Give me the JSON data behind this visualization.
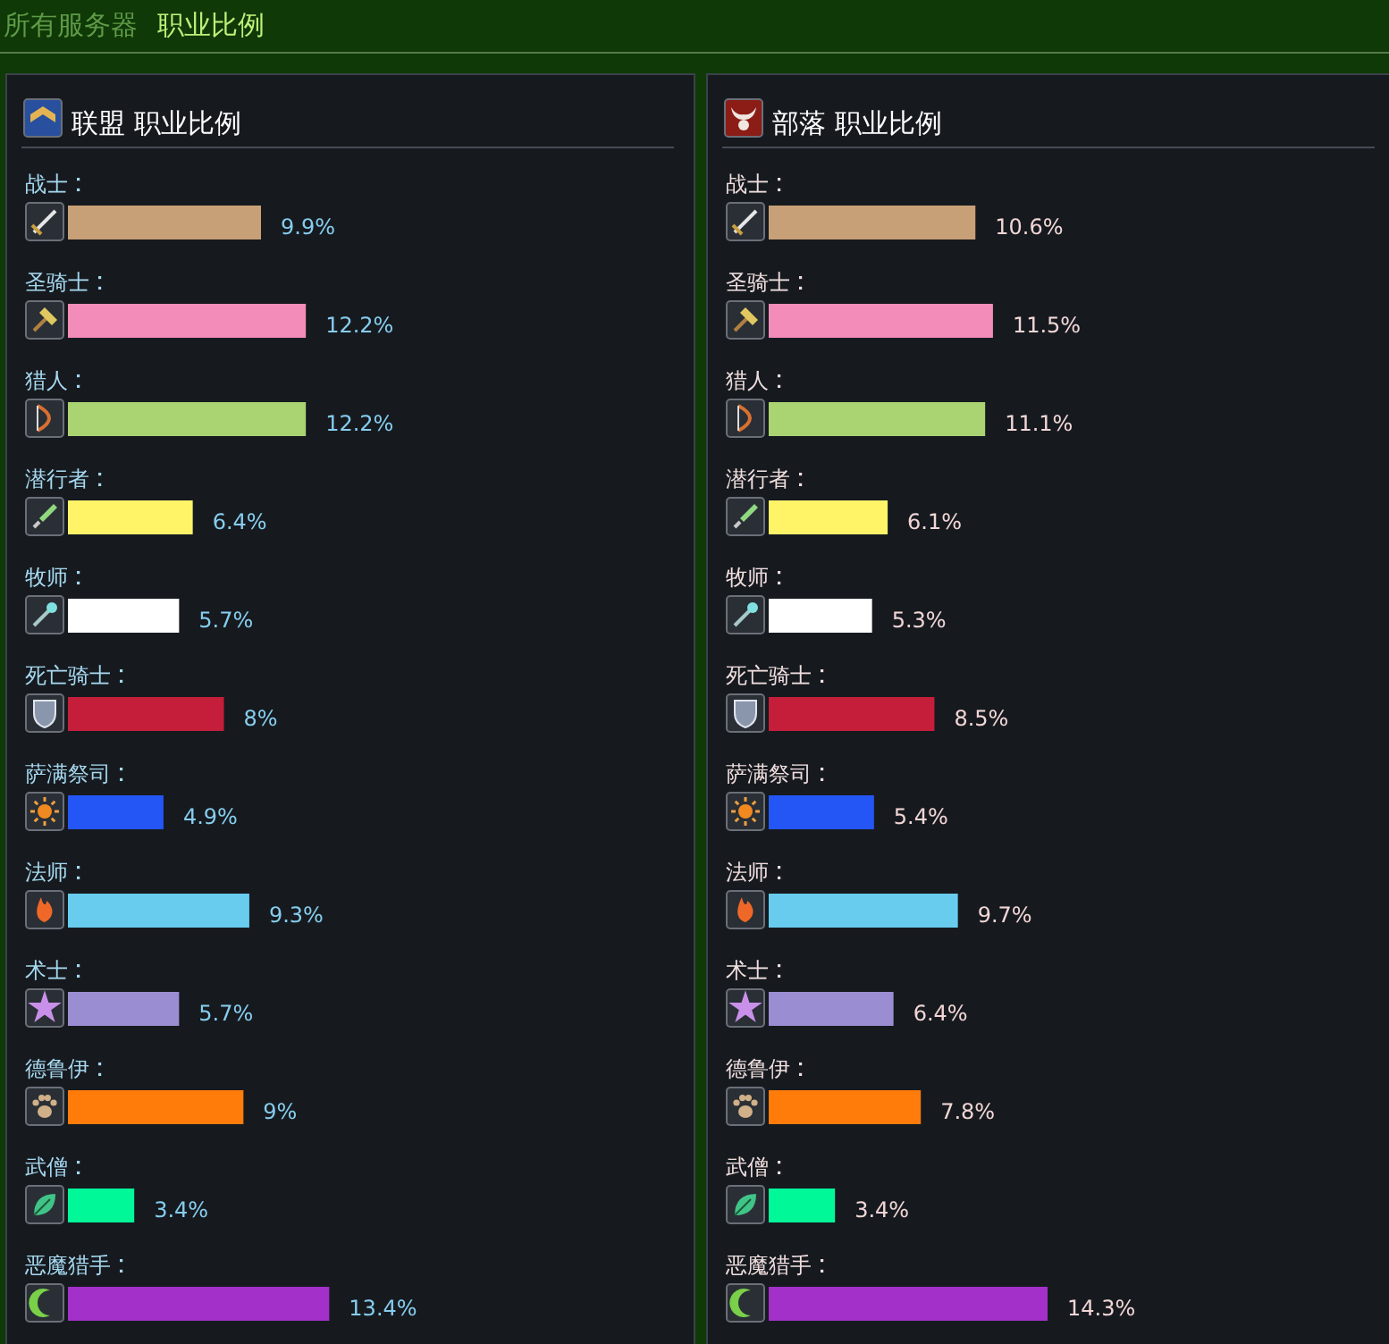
{
  "chart_data": [
    {
      "type": "bar",
      "orientation": "horizontal",
      "title": "联盟 职业比例",
      "annotations": [
        "所有服务器",
        "职业比例"
      ],
      "categories": [
        "战士",
        "圣骑士",
        "猎人",
        "潜行者",
        "牧师",
        "死亡骑士",
        "萨满祭司",
        "法师",
        "术士",
        "德鲁伊",
        "武僧",
        "恶魔猎手"
      ],
      "values": [
        9.9,
        12.2,
        12.2,
        6.4,
        5.7,
        8,
        4.9,
        9.3,
        5.7,
        9,
        3.4,
        13.4
      ],
      "value_labels": [
        "9.9%",
        "12.2%",
        "12.2%",
        "6.4%",
        "5.7%",
        "8%",
        "4.9%",
        "9.3%",
        "5.7%",
        "9%",
        "3.4%",
        "13.4%"
      ],
      "colors": [
        "#c8a077",
        "#f48cba",
        "#aad372",
        "#fff468",
        "#ffffff",
        "#c41e3a",
        "#2456f5",
        "#68ccef",
        "#9b8dd2",
        "#ff7c0a",
        "#00f898",
        "#a330c9"
      ]
    },
    {
      "type": "bar",
      "orientation": "horizontal",
      "title": "部落 职业比例",
      "categories": [
        "战士",
        "圣骑士",
        "猎人",
        "潜行者",
        "牧师",
        "死亡骑士",
        "萨满祭司",
        "法师",
        "术士",
        "德鲁伊",
        "武僧",
        "恶魔猎手"
      ],
      "values": [
        10.6,
        11.5,
        11.1,
        6.1,
        5.3,
        8.5,
        5.4,
        9.7,
        6.4,
        7.8,
        3.4,
        14.3
      ],
      "value_labels": [
        "10.6%",
        "11.5%",
        "11.1%",
        "6.1%",
        "5.3%",
        "8.5%",
        "5.4%",
        "9.7%",
        "6.4%",
        "7.8%",
        "3.4%",
        "14.3%"
      ],
      "colors": [
        "#c8a077",
        "#f48cba",
        "#aad372",
        "#fff468",
        "#ffffff",
        "#c41e3a",
        "#2456f5",
        "#68ccef",
        "#9b8dd2",
        "#ff7c0a",
        "#00f898",
        "#a330c9"
      ]
    }
  ]
}
